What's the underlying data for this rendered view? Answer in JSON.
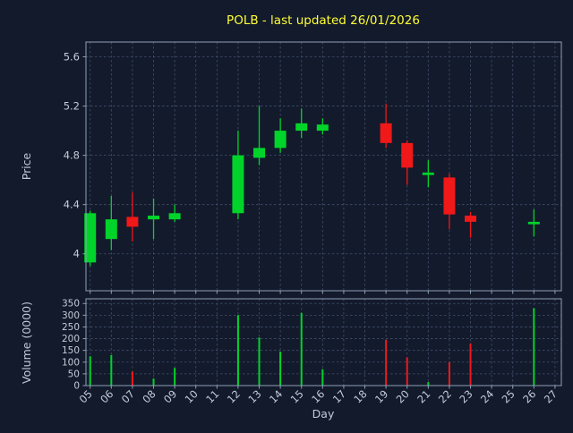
{
  "colors": {
    "background": "#131a2c",
    "plot_background": "#131a2c",
    "grid": "#41506b",
    "spine": "#8fa0b6",
    "tick_text": "#c3cbd9",
    "title": "#ffff33",
    "up": "#00d42a",
    "down": "#f01818"
  },
  "chart_data": {
    "type": "candlestick",
    "title": "POLB - last updated 26/01/2026",
    "xlabel": "Day",
    "price_ylabel": "Price",
    "volume_ylabel": "Volume (0000)",
    "x_ticks": [
      "05",
      "06",
      "07",
      "08",
      "09",
      "10",
      "11",
      "12",
      "13",
      "14",
      "15",
      "16",
      "17",
      "18",
      "19",
      "20",
      "21",
      "22",
      "23",
      "24",
      "25",
      "26",
      "27"
    ],
    "price_ticks": [
      4,
      4.4,
      4.8,
      5.2,
      5.6
    ],
    "price_tick_labels": [
      "4",
      "4.4",
      "4.8",
      "5.2",
      "5.6"
    ],
    "volume_ticks": [
      0,
      50,
      100,
      150,
      200,
      250,
      300,
      350
    ],
    "price_range": [
      3.7,
      5.72
    ],
    "volume_range": [
      0,
      370
    ],
    "day_range": [
      4.8,
      27.3
    ],
    "grid": true,
    "legend": "none",
    "candles": [
      {
        "day": 5,
        "label": "05",
        "open": 3.93,
        "high": 4.35,
        "low": 3.9,
        "close": 4.33,
        "volume": 125,
        "direction": "up"
      },
      {
        "day": 6,
        "label": "06",
        "open": 4.12,
        "high": 4.47,
        "low": 4.03,
        "close": 4.28,
        "volume": 130,
        "direction": "up"
      },
      {
        "day": 7,
        "label": "07",
        "open": 4.3,
        "high": 4.5,
        "low": 4.1,
        "close": 4.22,
        "volume": 60,
        "direction": "down"
      },
      {
        "day": 8,
        "label": "08",
        "open": 4.28,
        "high": 4.45,
        "low": 4.12,
        "close": 4.31,
        "volume": 30,
        "direction": "up"
      },
      {
        "day": 9,
        "label": "09",
        "open": 4.28,
        "high": 4.4,
        "low": 4.26,
        "close": 4.33,
        "volume": 75,
        "direction": "up"
      },
      {
        "day": 12,
        "label": "12",
        "open": 4.33,
        "high": 5.0,
        "low": 4.28,
        "close": 4.8,
        "volume": 300,
        "direction": "up"
      },
      {
        "day": 13,
        "label": "13",
        "open": 4.78,
        "high": 5.2,
        "low": 4.72,
        "close": 4.86,
        "volume": 205,
        "direction": "up"
      },
      {
        "day": 14,
        "label": "14",
        "open": 4.86,
        "high": 5.1,
        "low": 4.82,
        "close": 5.0,
        "volume": 145,
        "direction": "up"
      },
      {
        "day": 15,
        "label": "15",
        "open": 5.0,
        "high": 5.18,
        "low": 4.94,
        "close": 5.06,
        "volume": 310,
        "direction": "up"
      },
      {
        "day": 16,
        "label": "16",
        "open": 5.0,
        "high": 5.1,
        "low": 4.97,
        "close": 5.05,
        "volume": 70,
        "direction": "up"
      },
      {
        "day": 19,
        "label": "19",
        "open": 5.06,
        "high": 5.22,
        "low": 4.86,
        "close": 4.9,
        "volume": 195,
        "direction": "down"
      },
      {
        "day": 20,
        "label": "20",
        "open": 4.9,
        "high": 4.92,
        "low": 4.56,
        "close": 4.7,
        "volume": 120,
        "direction": "down"
      },
      {
        "day": 21,
        "label": "21",
        "open": 4.64,
        "high": 4.76,
        "low": 4.54,
        "close": 4.66,
        "volume": 15,
        "direction": "up"
      },
      {
        "day": 22,
        "label": "22",
        "open": 4.62,
        "high": 4.65,
        "low": 4.2,
        "close": 4.32,
        "volume": 100,
        "direction": "down"
      },
      {
        "day": 23,
        "label": "23",
        "open": 4.31,
        "high": 4.34,
        "low": 4.13,
        "close": 4.26,
        "volume": 180,
        "direction": "down"
      },
      {
        "day": 26,
        "label": "26",
        "open": 4.24,
        "high": 4.36,
        "low": 4.14,
        "close": 4.26,
        "volume": 330,
        "direction": "up"
      }
    ]
  }
}
